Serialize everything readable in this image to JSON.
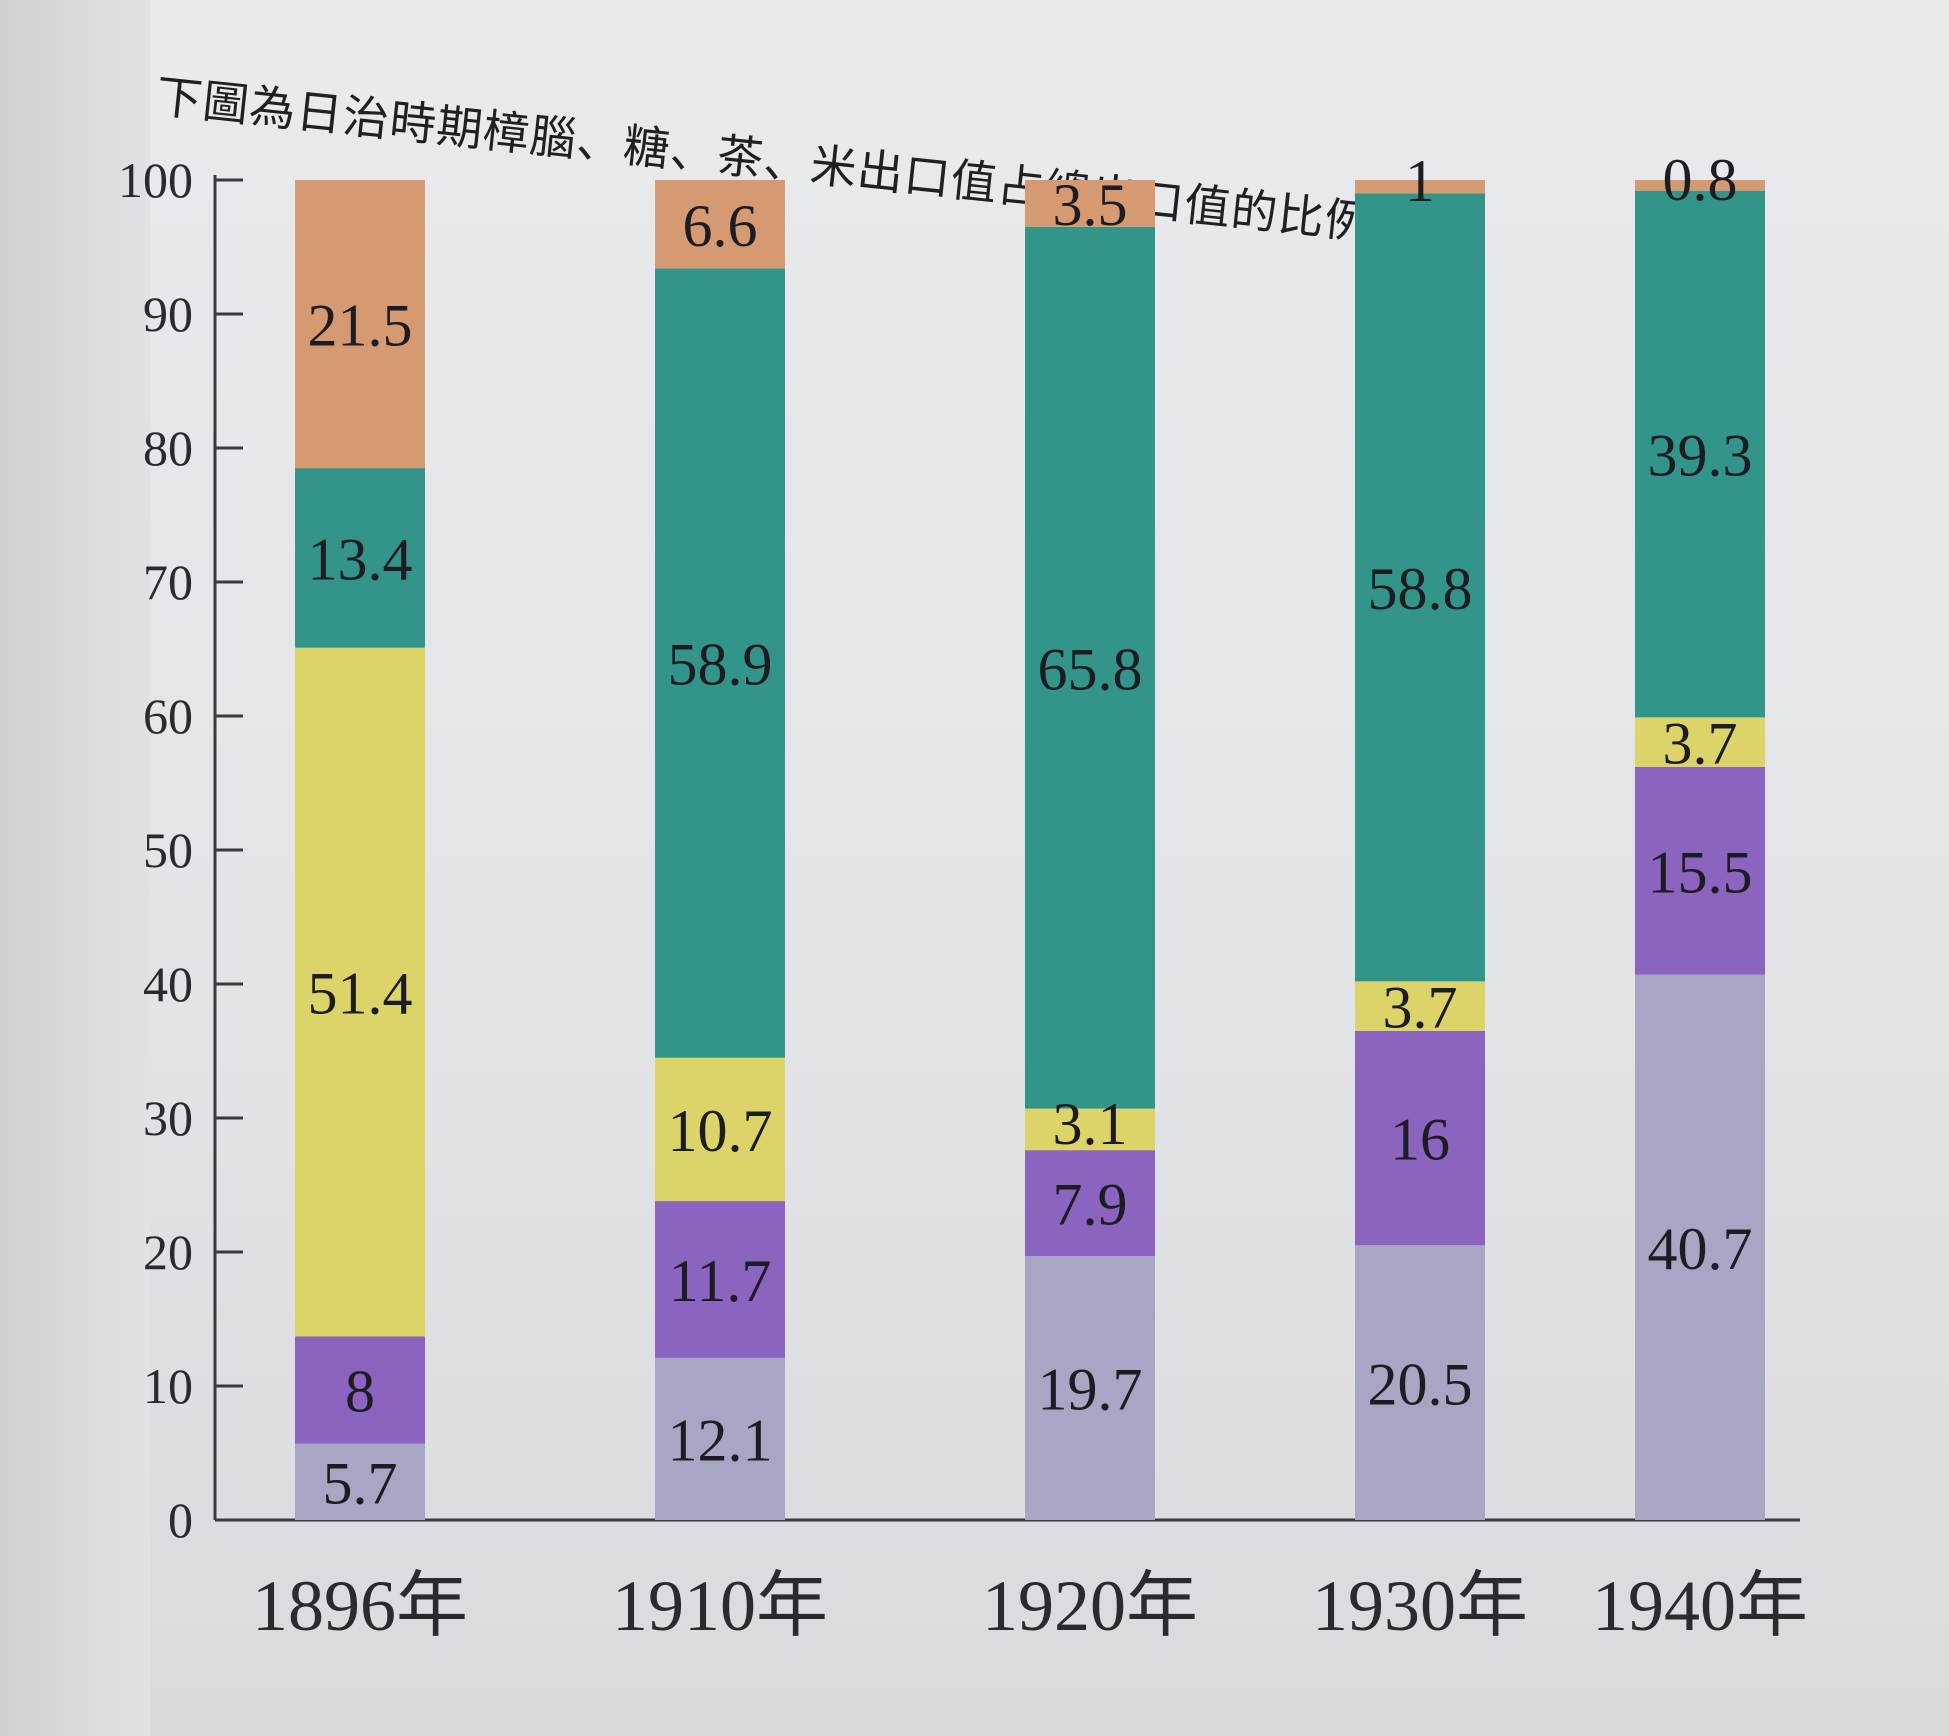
{
  "caption": "下圖為日治時期樟腦、糖、茶、米出口值占總出口值的比例圖。",
  "chart_data": {
    "type": "bar",
    "stacked": true,
    "categories": [
      "1896年",
      "1910年",
      "1920年",
      "1930年",
      "1940年"
    ],
    "ylim": [
      0,
      100
    ],
    "yticks": [
      "0",
      "10",
      "20",
      "30",
      "40",
      "50",
      "60",
      "70",
      "80",
      "90",
      "100"
    ],
    "series": [
      {
        "key": "seg1",
        "color": "#a7a6c4",
        "values": [
          5.7,
          12.1,
          19.7,
          20.5,
          40.7
        ],
        "labels": [
          "5.7",
          "12.1",
          "19.7",
          "20.5",
          "40.7"
        ]
      },
      {
        "key": "seg2",
        "color": "#8b64bf",
        "values": [
          8,
          11.7,
          7.9,
          16,
          15.5
        ],
        "labels": [
          "8",
          "11.7",
          "7.9",
          "16",
          "15.5"
        ]
      },
      {
        "key": "seg3",
        "color": "#dcd469",
        "values": [
          51.4,
          10.7,
          3.1,
          3.7,
          3.7
        ],
        "labels": [
          "51.4",
          "10.7",
          "3.1",
          "3.7",
          "3.7"
        ]
      },
      {
        "key": "seg4",
        "color": "#33958a",
        "values": [
          13.4,
          58.9,
          65.8,
          58.8,
          39.3
        ],
        "labels": [
          "13.4",
          "58.9",
          "65.8",
          "58.8",
          "39.3"
        ]
      },
      {
        "key": "seg5",
        "color": "#d69a72",
        "values": [
          21.5,
          6.6,
          3.5,
          1,
          0.8
        ],
        "labels": [
          "21.5",
          "6.6",
          "3.5",
          "1",
          "0.8"
        ]
      }
    ]
  }
}
